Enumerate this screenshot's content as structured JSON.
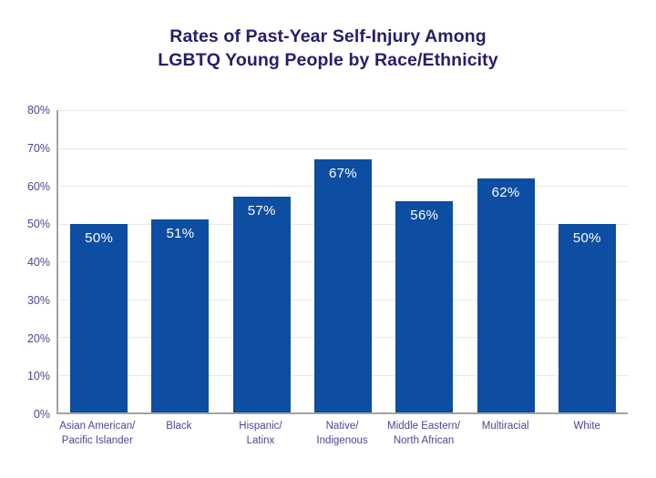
{
  "title": {
    "line1": "Rates of Past-Year Self-Injury Among",
    "line2": "LGBTQ Young People by Race/Ethnicity"
  },
  "chart_data": {
    "type": "bar",
    "title": "Rates of Past-Year Self-Injury Among LGBTQ Young People by Race/Ethnicity",
    "categories": [
      "Asian American/\nPacific Islander",
      "Black",
      "Hispanic/\nLatinx",
      "Native/\nIndigenous",
      "Middle Eastern/\nNorth African",
      "Multiracial",
      "White"
    ],
    "values": [
      50,
      51,
      57,
      67,
      56,
      62,
      50
    ],
    "bar_labels": [
      "50%",
      "51%",
      "57%",
      "67%",
      "56%",
      "62%",
      "50%"
    ],
    "xlabel": "",
    "ylabel": "",
    "ylim": [
      0,
      80
    ],
    "ytick_step": 10,
    "ytick_labels": [
      "0%",
      "10%",
      "20%",
      "30%",
      "40%",
      "50%",
      "60%",
      "70%",
      "80%"
    ],
    "grid": true,
    "legend": false
  },
  "colors": {
    "bar": "#0d4da2",
    "title": "#241f6b",
    "axis_labels": "#4a4795",
    "gridline": "#e9e9ed",
    "axis_line": "#a3a3a3",
    "bar_label": "#ffffff",
    "background": "#ffffff"
  }
}
